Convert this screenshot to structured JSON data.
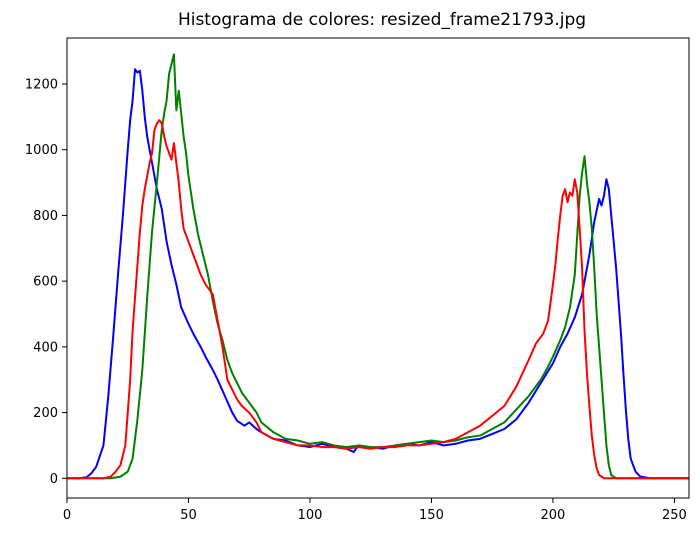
{
  "chart_data": {
    "type": "line",
    "title": "Histograma de colores: resized_frame21793.jpg",
    "xlabel": "",
    "ylabel": "",
    "xlim": [
      0,
      256
    ],
    "ylim": [
      -60,
      1340
    ],
    "x_ticks": [
      0,
      50,
      100,
      150,
      200,
      250
    ],
    "y_ticks": [
      0,
      200,
      400,
      600,
      800,
      1000,
      1200
    ],
    "grid": false,
    "legend": "none",
    "series": [
      {
        "color": "#0000ff",
        "points": [
          [
            0,
            0
          ],
          [
            5,
            0
          ],
          [
            8,
            3
          ],
          [
            10,
            15
          ],
          [
            12,
            35
          ],
          [
            15,
            100
          ],
          [
            17,
            250
          ],
          [
            19,
            430
          ],
          [
            21,
            620
          ],
          [
            23,
            800
          ],
          [
            25,
            1000
          ],
          [
            26,
            1090
          ],
          [
            27,
            1150
          ],
          [
            28,
            1245
          ],
          [
            29,
            1235
          ],
          [
            30,
            1240
          ],
          [
            31,
            1180
          ],
          [
            32,
            1100
          ],
          [
            33,
            1040
          ],
          [
            35,
            960
          ],
          [
            37,
            880
          ],
          [
            39,
            820
          ],
          [
            41,
            720
          ],
          [
            43,
            650
          ],
          [
            45,
            590
          ],
          [
            47,
            520
          ],
          [
            50,
            470
          ],
          [
            52,
            440
          ],
          [
            55,
            400
          ],
          [
            57,
            370
          ],
          [
            60,
            330
          ],
          [
            62,
            300
          ],
          [
            65,
            250
          ],
          [
            68,
            200
          ],
          [
            70,
            175
          ],
          [
            73,
            160
          ],
          [
            75,
            170
          ],
          [
            78,
            150
          ],
          [
            80,
            140
          ],
          [
            85,
            120
          ],
          [
            90,
            115
          ],
          [
            95,
            100
          ],
          [
            100,
            95
          ],
          [
            105,
            105
          ],
          [
            110,
            95
          ],
          [
            115,
            90
          ],
          [
            118,
            80
          ],
          [
            120,
            100
          ],
          [
            125,
            95
          ],
          [
            130,
            90
          ],
          [
            135,
            100
          ],
          [
            140,
            105
          ],
          [
            145,
            100
          ],
          [
            150,
            110
          ],
          [
            155,
            100
          ],
          [
            160,
            105
          ],
          [
            165,
            115
          ],
          [
            170,
            120
          ],
          [
            175,
            135
          ],
          [
            180,
            150
          ],
          [
            185,
            180
          ],
          [
            190,
            230
          ],
          [
            195,
            290
          ],
          [
            200,
            350
          ],
          [
            203,
            400
          ],
          [
            206,
            440
          ],
          [
            209,
            490
          ],
          [
            212,
            560
          ],
          [
            215,
            680
          ],
          [
            217,
            780
          ],
          [
            219,
            850
          ],
          [
            220,
            830
          ],
          [
            221,
            860
          ],
          [
            222,
            910
          ],
          [
            223,
            880
          ],
          [
            224,
            800
          ],
          [
            225,
            720
          ],
          [
            226,
            640
          ],
          [
            227,
            540
          ],
          [
            228,
            440
          ],
          [
            229,
            320
          ],
          [
            230,
            210
          ],
          [
            231,
            120
          ],
          [
            232,
            60
          ],
          [
            234,
            20
          ],
          [
            236,
            5
          ],
          [
            240,
            0
          ],
          [
            256,
            0
          ]
        ]
      },
      {
        "color": "#008000",
        "points": [
          [
            0,
            0
          ],
          [
            18,
            0
          ],
          [
            22,
            5
          ],
          [
            25,
            20
          ],
          [
            27,
            60
          ],
          [
            29,
            180
          ],
          [
            31,
            330
          ],
          [
            33,
            550
          ],
          [
            35,
            750
          ],
          [
            37,
            900
          ],
          [
            38,
            980
          ],
          [
            39,
            1060
          ],
          [
            40,
            1110
          ],
          [
            41,
            1150
          ],
          [
            42,
            1230
          ],
          [
            43,
            1260
          ],
          [
            44,
            1290
          ],
          [
            45,
            1120
          ],
          [
            46,
            1180
          ],
          [
            47,
            1110
          ],
          [
            48,
            1040
          ],
          [
            49,
            990
          ],
          [
            50,
            920
          ],
          [
            52,
            820
          ],
          [
            54,
            740
          ],
          [
            56,
            680
          ],
          [
            58,
            620
          ],
          [
            60,
            540
          ],
          [
            62,
            470
          ],
          [
            64,
            420
          ],
          [
            66,
            360
          ],
          [
            68,
            320
          ],
          [
            70,
            290
          ],
          [
            72,
            260
          ],
          [
            75,
            230
          ],
          [
            78,
            200
          ],
          [
            80,
            170
          ],
          [
            85,
            140
          ],
          [
            90,
            120
          ],
          [
            95,
            115
          ],
          [
            100,
            105
          ],
          [
            105,
            110
          ],
          [
            110,
            100
          ],
          [
            115,
            95
          ],
          [
            120,
            100
          ],
          [
            125,
            95
          ],
          [
            130,
            95
          ],
          [
            135,
            100
          ],
          [
            140,
            105
          ],
          [
            145,
            110
          ],
          [
            150,
            115
          ],
          [
            155,
            110
          ],
          [
            160,
            115
          ],
          [
            165,
            125
          ],
          [
            170,
            130
          ],
          [
            175,
            150
          ],
          [
            180,
            170
          ],
          [
            185,
            210
          ],
          [
            190,
            250
          ],
          [
            195,
            300
          ],
          [
            198,
            340
          ],
          [
            200,
            370
          ],
          [
            203,
            420
          ],
          [
            205,
            460
          ],
          [
            207,
            520
          ],
          [
            209,
            620
          ],
          [
            210,
            740
          ],
          [
            211,
            860
          ],
          [
            212,
            930
          ],
          [
            213,
            980
          ],
          [
            214,
            900
          ],
          [
            215,
            840
          ],
          [
            216,
            760
          ],
          [
            217,
            640
          ],
          [
            218,
            500
          ],
          [
            219,
            400
          ],
          [
            220,
            300
          ],
          [
            221,
            200
          ],
          [
            222,
            100
          ],
          [
            223,
            40
          ],
          [
            224,
            10
          ],
          [
            226,
            0
          ],
          [
            256,
            0
          ]
        ]
      },
      {
        "color": "#ff0000",
        "points": [
          [
            0,
            0
          ],
          [
            15,
            0
          ],
          [
            18,
            5
          ],
          [
            20,
            20
          ],
          [
            22,
            40
          ],
          [
            24,
            100
          ],
          [
            25,
            200
          ],
          [
            26,
            300
          ],
          [
            27,
            450
          ],
          [
            28,
            550
          ],
          [
            29,
            650
          ],
          [
            30,
            750
          ],
          [
            31,
            830
          ],
          [
            32,
            880
          ],
          [
            33,
            920
          ],
          [
            34,
            960
          ],
          [
            35,
            990
          ],
          [
            36,
            1060
          ],
          [
            37,
            1080
          ],
          [
            38,
            1090
          ],
          [
            39,
            1080
          ],
          [
            40,
            1040
          ],
          [
            41,
            1010
          ],
          [
            42,
            990
          ],
          [
            43,
            970
          ],
          [
            44,
            1020
          ],
          [
            45,
            960
          ],
          [
            46,
            900
          ],
          [
            47,
            820
          ],
          [
            48,
            760
          ],
          [
            50,
            720
          ],
          [
            52,
            680
          ],
          [
            55,
            620
          ],
          [
            57,
            590
          ],
          [
            60,
            560
          ],
          [
            62,
            480
          ],
          [
            64,
            400
          ],
          [
            66,
            300
          ],
          [
            68,
            270
          ],
          [
            70,
            240
          ],
          [
            72,
            220
          ],
          [
            75,
            200
          ],
          [
            78,
            170
          ],
          [
            80,
            140
          ],
          [
            85,
            120
          ],
          [
            90,
            110
          ],
          [
            95,
            100
          ],
          [
            100,
            100
          ],
          [
            105,
            95
          ],
          [
            110,
            95
          ],
          [
            115,
            90
          ],
          [
            120,
            95
          ],
          [
            125,
            90
          ],
          [
            130,
            95
          ],
          [
            135,
            95
          ],
          [
            140,
            100
          ],
          [
            145,
            100
          ],
          [
            150,
            105
          ],
          [
            155,
            110
          ],
          [
            160,
            120
          ],
          [
            165,
            140
          ],
          [
            170,
            160
          ],
          [
            175,
            190
          ],
          [
            180,
            220
          ],
          [
            185,
            280
          ],
          [
            190,
            360
          ],
          [
            193,
            410
          ],
          [
            196,
            440
          ],
          [
            198,
            480
          ],
          [
            200,
            590
          ],
          [
            201,
            650
          ],
          [
            202,
            730
          ],
          [
            203,
            800
          ],
          [
            204,
            860
          ],
          [
            205,
            880
          ],
          [
            206,
            840
          ],
          [
            207,
            870
          ],
          [
            208,
            860
          ],
          [
            209,
            910
          ],
          [
            210,
            870
          ],
          [
            211,
            760
          ],
          [
            212,
            640
          ],
          [
            213,
            450
          ],
          [
            214,
            320
          ],
          [
            215,
            220
          ],
          [
            216,
            130
          ],
          [
            217,
            70
          ],
          [
            218,
            30
          ],
          [
            219,
            10
          ],
          [
            221,
            0
          ],
          [
            256,
            0
          ]
        ]
      }
    ]
  }
}
